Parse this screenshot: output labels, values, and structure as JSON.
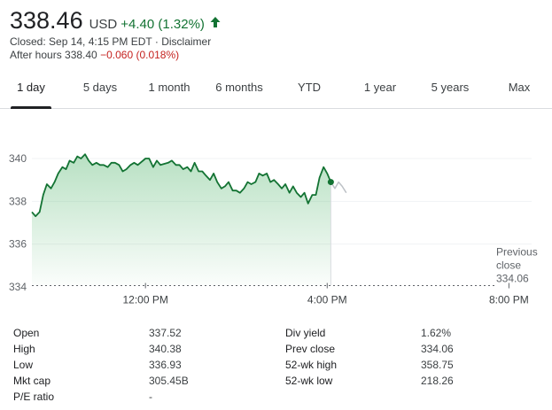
{
  "quote": {
    "price": "338.46",
    "currency": "USD",
    "change": "+4.40 (1.32%)",
    "change_icon": "arrow-up-icon",
    "accent_color": "#137333",
    "closed_text": "Closed: Sep 14, 4:15 PM EDT · Disclaimer",
    "after_hours_label": "After hours 338.40",
    "after_hours_change": "−0.060 (0.018%)",
    "negative_color": "#c5221f"
  },
  "tabs": [
    {
      "label": "1 day",
      "active": true
    },
    {
      "label": "5 days",
      "active": false
    },
    {
      "label": "1 month",
      "active": false
    },
    {
      "label": "6 months",
      "active": false
    },
    {
      "label": "YTD",
      "active": false
    },
    {
      "label": "1 year",
      "active": false
    },
    {
      "label": "5 years",
      "active": false
    },
    {
      "label": "Max",
      "active": false
    }
  ],
  "chart_data": {
    "type": "line",
    "y_ticks": [
      "340",
      "338",
      "336",
      "334"
    ],
    "ylim": [
      334,
      341.2
    ],
    "x_ticks": [
      "12:00 PM",
      "4:00 PM",
      "8:00 PM"
    ],
    "x_tick_hours": [
      12,
      16,
      20
    ],
    "xlim_hours": [
      9.5,
      20.5
    ],
    "previous_close_label": [
      "Previous",
      "close",
      "334.06"
    ],
    "previous_close": 334.06,
    "line_color": "#137333",
    "after_hours_color": "#bdc1c6",
    "series_regular_hours": [
      [
        9.5,
        337.5
      ],
      [
        9.58,
        337.3
      ],
      [
        9.67,
        337.5
      ],
      [
        9.75,
        338.3
      ],
      [
        9.83,
        338.8
      ],
      [
        9.92,
        338.6
      ],
      [
        10.0,
        338.9
      ],
      [
        10.08,
        339.3
      ],
      [
        10.17,
        339.6
      ],
      [
        10.25,
        339.5
      ],
      [
        10.33,
        339.9
      ],
      [
        10.42,
        339.8
      ],
      [
        10.5,
        340.1
      ],
      [
        10.58,
        340.0
      ],
      [
        10.67,
        340.2
      ],
      [
        10.75,
        339.9
      ],
      [
        10.83,
        339.7
      ],
      [
        10.92,
        339.8
      ],
      [
        11.0,
        339.7
      ],
      [
        11.08,
        339.7
      ],
      [
        11.17,
        339.6
      ],
      [
        11.25,
        339.8
      ],
      [
        11.33,
        339.8
      ],
      [
        11.42,
        339.7
      ],
      [
        11.5,
        339.4
      ],
      [
        11.58,
        339.5
      ],
      [
        11.67,
        339.7
      ],
      [
        11.75,
        339.8
      ],
      [
        11.83,
        339.7
      ],
      [
        12.0,
        340.0
      ],
      [
        12.08,
        340.0
      ],
      [
        12.17,
        339.6
      ],
      [
        12.25,
        339.9
      ],
      [
        12.33,
        339.7
      ],
      [
        12.5,
        339.8
      ],
      [
        12.58,
        339.9
      ],
      [
        12.67,
        339.7
      ],
      [
        12.75,
        339.7
      ],
      [
        12.83,
        339.5
      ],
      [
        12.92,
        339.6
      ],
      [
        13.0,
        339.4
      ],
      [
        13.08,
        339.8
      ],
      [
        13.17,
        339.4
      ],
      [
        13.25,
        339.4
      ],
      [
        13.33,
        339.2
      ],
      [
        13.42,
        339.0
      ],
      [
        13.5,
        339.3
      ],
      [
        13.58,
        338.9
      ],
      [
        13.67,
        338.6
      ],
      [
        13.75,
        338.7
      ],
      [
        13.83,
        338.9
      ],
      [
        13.92,
        338.5
      ],
      [
        14.0,
        338.5
      ],
      [
        14.08,
        338.4
      ],
      [
        14.17,
        338.6
      ],
      [
        14.25,
        338.9
      ],
      [
        14.33,
        338.8
      ],
      [
        14.42,
        338.9
      ],
      [
        14.5,
        339.3
      ],
      [
        14.58,
        339.2
      ],
      [
        14.67,
        339.3
      ],
      [
        14.75,
        338.9
      ],
      [
        14.83,
        339.0
      ],
      [
        14.92,
        338.8
      ],
      [
        15.0,
        338.6
      ],
      [
        15.08,
        338.8
      ],
      [
        15.17,
        338.4
      ],
      [
        15.25,
        338.7
      ],
      [
        15.33,
        338.4
      ],
      [
        15.42,
        338.2
      ],
      [
        15.5,
        338.4
      ],
      [
        15.58,
        337.9
      ],
      [
        15.67,
        338.3
      ],
      [
        15.75,
        338.3
      ],
      [
        15.83,
        339.1
      ],
      [
        15.92,
        339.6
      ],
      [
        16.0,
        339.3
      ],
      [
        16.08,
        338.9
      ]
    ],
    "series_after_hours": [
      [
        16.08,
        338.9
      ],
      [
        16.17,
        338.6
      ],
      [
        16.25,
        338.9
      ],
      [
        16.33,
        338.7
      ],
      [
        16.42,
        338.4
      ]
    ]
  },
  "stats": {
    "left": [
      {
        "label": "Open",
        "value": "337.52"
      },
      {
        "label": "High",
        "value": "340.38"
      },
      {
        "label": "Low",
        "value": "336.93"
      },
      {
        "label": "Mkt cap",
        "value": "305.45B"
      },
      {
        "label": "P/E ratio",
        "value": "-"
      }
    ],
    "right": [
      {
        "label": "Div yield",
        "value": "1.62%"
      },
      {
        "label": "Prev close",
        "value": "334.06"
      },
      {
        "label": "52-wk high",
        "value": "358.75"
      },
      {
        "label": "52-wk low",
        "value": "218.26"
      }
    ]
  }
}
